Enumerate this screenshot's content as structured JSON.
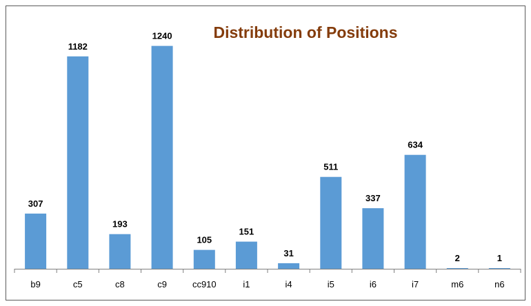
{
  "chart_data": {
    "type": "bar",
    "title": "Distribution of Positions",
    "xlabel": "",
    "ylabel": "",
    "categories": [
      "b9",
      "c5",
      "c8",
      "c9",
      "cc910",
      "i1",
      "i4",
      "i5",
      "i6",
      "i7",
      "m6",
      "n6"
    ],
    "values": [
      307,
      1182,
      193,
      1240,
      105,
      151,
      31,
      511,
      337,
      634,
      2,
      1
    ],
    "ylim": [
      0,
      1300
    ],
    "grid": false,
    "legend": "none",
    "colors": {
      "bar": "#5b9bd5",
      "title": "#843c0c",
      "axis": "#7f7f7f"
    }
  }
}
